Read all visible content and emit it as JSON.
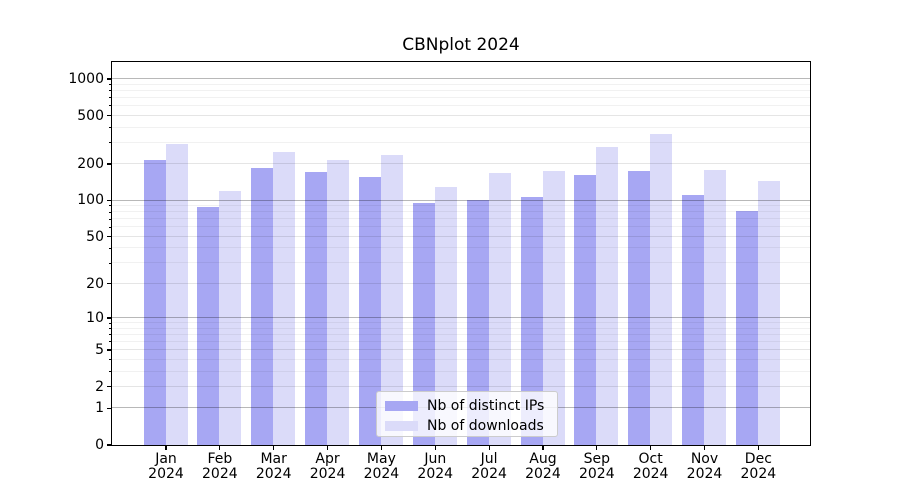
{
  "chart_data": {
    "type": "bar",
    "title": "CBNplot 2024",
    "xlabel": "",
    "ylabel": "",
    "year": "2024",
    "categories": [
      "Jan",
      "Feb",
      "Mar",
      "Apr",
      "May",
      "Jun",
      "Jul",
      "Aug",
      "Sep",
      "Oct",
      "Nov",
      "Dec"
    ],
    "series": [
      {
        "name": "Nb of distinct IPs",
        "color": "#a7a7f3",
        "values": [
          215,
          87,
          185,
          171,
          154,
          94,
          101,
          107,
          162,
          173,
          110,
          81
        ]
      },
      {
        "name": "Nb of downloads",
        "color": "#dbdbf9",
        "values": [
          291,
          120,
          248,
          213,
          236,
          128,
          166,
          174,
          272,
          352,
          176,
          144
        ]
      }
    ],
    "y_axis": {
      "scale": "log1p",
      "ticks": [
        0,
        1,
        2,
        5,
        10,
        20,
        50,
        100,
        200,
        500,
        1000
      ],
      "minor_ticks": [
        3,
        4,
        6,
        7,
        8,
        9,
        30,
        40,
        60,
        70,
        80,
        90,
        300,
        400,
        600,
        700,
        800,
        900
      ],
      "range_top": 1380
    },
    "legend_position": "lower center",
    "grid": true,
    "colors": {
      "grid_major": "rgba(0,0,0,0.28)",
      "grid_labeled": "rgba(0,0,0,0.10)",
      "grid_minor": "rgba(0,0,0,0.055)",
      "frame": "#000000",
      "background": "#ffffff"
    }
  }
}
